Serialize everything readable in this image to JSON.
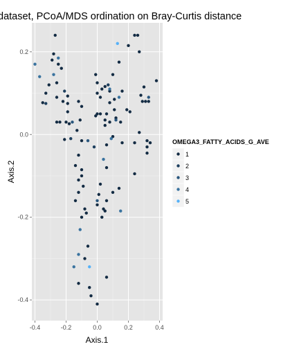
{
  "chart_data": {
    "type": "scatter",
    "title": "dataset, PCoA/MDS ordination on Bray-Curtis distance",
    "xlabel": "Axis.1",
    "ylabel": "Axis.2",
    "xlim": [
      -0.42,
      0.42
    ],
    "ylim": [
      -0.45,
      0.27
    ],
    "xticks": [
      -0.4,
      -0.2,
      0.0,
      0.2,
      0.4
    ],
    "xtick_labels": [
      "-0.4",
      "-0.2",
      "0.0",
      "0.2",
      "0.4"
    ],
    "yticks": [
      -0.4,
      -0.2,
      0.0,
      0.2
    ],
    "ytick_labels": [
      "-0.4",
      "-0.2",
      "0.0",
      "0.2"
    ],
    "grid": true,
    "legend": {
      "title": "OMEGA3_FATTY_ACIDS_G_AVE",
      "placement": "right",
      "entries": [
        "1",
        "2",
        "3",
        "4",
        "5"
      ],
      "colors": [
        "#132B43",
        "#1D3F5E",
        "#29567D",
        "#3A739F",
        "#56B1F7"
      ]
    },
    "series": [
      {
        "name": "1",
        "color": "#132B43",
        "points": [
          [
            -0.27,
            0.24
          ],
          [
            -0.28,
            0.195
          ],
          [
            -0.29,
            0.18
          ],
          [
            -0.25,
            0.17
          ],
          [
            -0.23,
            0.16
          ],
          [
            -0.26,
            0.125
          ],
          [
            -0.31,
            0.12
          ],
          [
            -0.33,
            0.1
          ],
          [
            -0.35,
            0.077
          ],
          [
            -0.26,
            0.09
          ],
          [
            -0.22,
            0.08
          ],
          [
            -0.19,
            0.093
          ],
          [
            -0.19,
            0.075
          ],
          [
            -0.19,
            0.055
          ],
          [
            -0.2,
            0.03
          ],
          [
            -0.18,
            0.026
          ],
          [
            -0.24,
            0.03
          ],
          [
            -0.26,
            0.03
          ],
          [
            -0.21,
            -0.012
          ],
          [
            -0.12,
            0.08
          ],
          [
            -0.1,
            0.068
          ],
          [
            -0.11,
            0.035
          ],
          [
            -0.13,
            0.01
          ],
          [
            -0.1,
            -0.015
          ],
          [
            -0.12,
            -0.05
          ],
          [
            -0.14,
            -0.075
          ],
          [
            -0.1,
            -0.085
          ],
          [
            -0.1,
            -0.1
          ],
          [
            -0.12,
            -0.11
          ],
          [
            -0.09,
            -0.125
          ],
          [
            -0.12,
            -0.14
          ],
          [
            -0.14,
            -0.16
          ],
          [
            -0.08,
            -0.18
          ],
          [
            -0.07,
            -0.19
          ],
          [
            -0.1,
            -0.2
          ],
          [
            -0.06,
            -0.27
          ],
          [
            -0.08,
            -0.3
          ],
          [
            -0.12,
            -0.36
          ],
          [
            -0.05,
            -0.37
          ],
          [
            -0.04,
            -0.39
          ],
          [
            0.0,
            -0.41
          ],
          [
            0.06,
            -0.345
          ],
          [
            -0.01,
            0.145
          ],
          [
            0.0,
            0.125
          ],
          [
            0.03,
            0.11
          ],
          [
            0.05,
            0.116
          ],
          [
            0.0,
            0.1
          ],
          [
            0.02,
            0.09
          ],
          [
            0.1,
            0.145
          ],
          [
            0.08,
            0.105
          ],
          [
            0.14,
            0.175
          ],
          [
            0.16,
            0.105
          ],
          [
            0.11,
            0.085
          ],
          [
            0.08,
            0.077
          ],
          [
            0.11,
            0.06
          ],
          [
            0.06,
            0.05
          ],
          [
            0.05,
            0.035
          ],
          [
            0.02,
            0.05
          ],
          [
            0.0,
            0.05
          ],
          [
            -0.01,
            0.045
          ],
          [
            0.05,
            0.022
          ],
          [
            0.08,
            0.03
          ],
          [
            0.12,
            0.04
          ],
          [
            0.15,
            0.03
          ],
          [
            0.16,
            -0.02
          ],
          [
            0.06,
            -0.025
          ],
          [
            0.1,
            -0.005
          ],
          [
            0.06,
            -0.08
          ],
          [
            0.02,
            -0.12
          ],
          [
            0.01,
            -0.145
          ],
          [
            0.06,
            -0.16
          ],
          [
            0.0,
            -0.17
          ],
          [
            0.04,
            -0.18
          ],
          [
            0.05,
            -0.185
          ],
          [
            0.03,
            -0.2
          ],
          [
            0.1,
            -0.14
          ],
          [
            0.14,
            -0.13
          ],
          [
            0.19,
            0.06
          ],
          [
            0.21,
            0.055
          ],
          [
            0.24,
            0.24
          ],
          [
            0.26,
            0.24
          ],
          [
            0.27,
            0.2
          ],
          [
            0.2,
            0.215
          ],
          [
            0.28,
            0.095
          ],
          [
            0.29,
            0.08
          ],
          [
            0.31,
            0.08
          ],
          [
            0.33,
            0.08
          ],
          [
            0.38,
            0.13
          ],
          [
            0.3,
            0.115
          ],
          [
            0.32,
            -0.015
          ],
          [
            0.34,
            -0.02
          ],
          [
            0.32,
            -0.03
          ],
          [
            0.32,
            -0.045
          ],
          [
            0.27,
            0.005
          ],
          [
            0.24,
            -0.02
          ],
          [
            0.24,
            -0.095
          ]
        ]
      },
      {
        "name": "2",
        "color": "#1D3F5E",
        "points": [
          [
            -0.33,
            0.075
          ],
          [
            -0.21,
            0.105
          ],
          [
            -0.17,
            -0.01
          ],
          [
            -0.02,
            -0.03
          ],
          [
            0.07,
            0.12
          ]
        ]
      },
      {
        "name": "3",
        "color": "#29567D",
        "points": [
          [
            -0.16,
            0.03
          ],
          [
            -0.06,
            -0.015
          ],
          [
            0.0,
            -0.16
          ],
          [
            0.12,
            0.035
          ],
          [
            0.33,
            0.09
          ]
        ]
      },
      {
        "name": "4",
        "color": "#3A739F",
        "points": [
          [
            -0.4,
            0.17
          ],
          [
            -0.37,
            0.14
          ],
          [
            -0.25,
            0.185
          ],
          [
            -0.28,
            0.145
          ],
          [
            -0.15,
            -0.32
          ],
          [
            -0.12,
            -0.29
          ],
          [
            -0.11,
            -0.23
          ],
          [
            0.04,
            -0.06
          ],
          [
            0.08,
            0.11
          ],
          [
            0.09,
            -0.01
          ],
          [
            0.15,
            -0.185
          ],
          [
            0.14,
            0.09
          ]
        ]
      },
      {
        "name": "5",
        "color": "#56B1F7",
        "points": [
          [
            0.13,
            0.22
          ],
          [
            -0.05,
            -0.32
          ]
        ]
      }
    ]
  }
}
